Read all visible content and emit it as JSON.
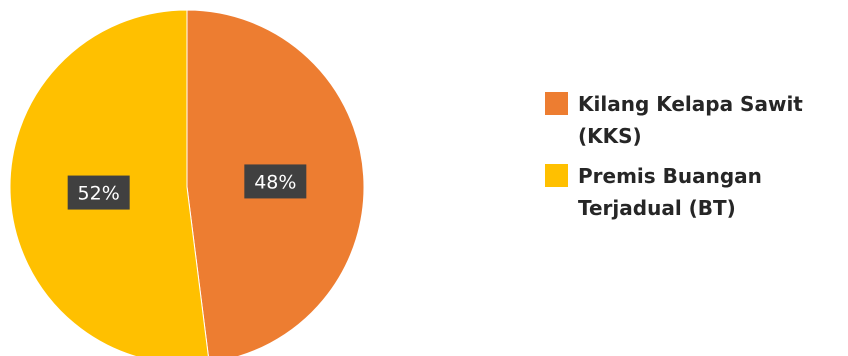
{
  "chart_data": {
    "type": "pie",
    "categories": [
      "Kilang Kelapa Sawit (KKS)",
      "Premis Buangan Terjadual (BT)"
    ],
    "values": [
      48,
      52
    ],
    "data_labels": [
      "48%",
      "52%"
    ],
    "colors": [
      "#ED7D31",
      "#FFC000"
    ],
    "legend_position": "right",
    "start_angle_deg": 0,
    "direction": "clockwise"
  }
}
